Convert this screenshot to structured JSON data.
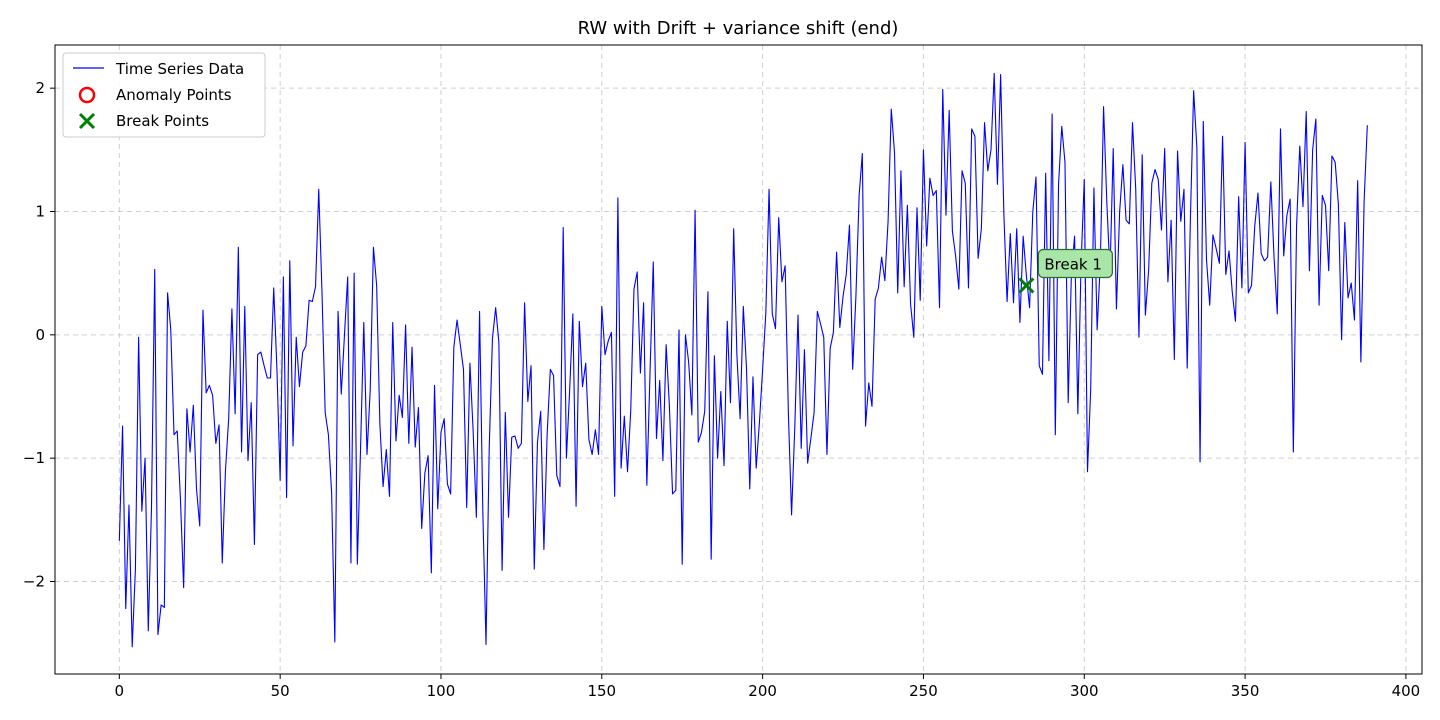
{
  "chart_data": {
    "type": "line",
    "title": "RW with Drift + variance shift (end)",
    "xlabel": "",
    "ylabel": "",
    "xlim": [
      -20,
      405
    ],
    "ylim": [
      -2.75,
      2.35
    ],
    "x_ticks": [
      0,
      50,
      100,
      150,
      200,
      250,
      300,
      350,
      400
    ],
    "y_ticks": [
      -2,
      -1,
      0,
      1,
      2
    ],
    "x_tick_labels": [
      "0",
      "50",
      "100",
      "150",
      "200",
      "250",
      "300",
      "350",
      "400"
    ],
    "y_tick_labels": [
      "−2",
      "−1",
      "0",
      "1",
      "2"
    ],
    "grid": true,
    "legend_position": "top-left",
    "legend": [
      {
        "label": "Time Series Data",
        "marker": "line",
        "color": "#0000ff"
      },
      {
        "label": "Anomaly Points",
        "marker": "circle",
        "color": "#ff0000"
      },
      {
        "label": "Break Points",
        "marker": "x",
        "color": "#008000"
      }
    ],
    "series": [
      {
        "name": "Time Series Data",
        "color": "#0000ff",
        "x_start": 0,
        "x_step": 1,
        "values": [
          -1.67,
          -0.74,
          -2.22,
          -1.38,
          -2.53,
          -1.9,
          -0.02,
          -1.43,
          -1.0,
          -2.4,
          -1.4,
          0.53,
          -2.43,
          -2.19,
          -2.21,
          0.34,
          0.04,
          -0.81,
          -0.78,
          -1.33,
          -2.05,
          -0.6,
          -0.95,
          -0.57,
          -1.25,
          -1.55,
          0.2,
          -0.47,
          -0.41,
          -0.49,
          -0.88,
          -0.73,
          -1.85,
          -1.1,
          -0.68,
          0.21,
          -0.64,
          0.71,
          -0.95,
          0.23,
          -1.02,
          -0.55,
          -1.7,
          -0.16,
          -0.14,
          -0.25,
          -0.35,
          -0.35,
          0.38,
          -0.28,
          -1.18,
          0.47,
          -1.32,
          0.6,
          -0.9,
          -0.02,
          -0.42,
          -0.14,
          -0.09,
          0.28,
          0.27,
          0.39,
          1.18,
          0.35,
          -0.63,
          -0.81,
          -1.28,
          -2.49,
          0.19,
          -0.48,
          0.0,
          0.47,
          -1.85,
          0.5,
          -1.86,
          -0.92,
          0.1,
          -0.97,
          -0.45,
          0.71,
          0.4,
          -0.72,
          -1.23,
          -0.93,
          -1.31,
          0.1,
          -0.86,
          -0.49,
          -0.67,
          0.08,
          -0.88,
          -0.1,
          -0.91,
          -0.59,
          -1.57,
          -1.12,
          -0.98,
          -1.93,
          -0.41,
          -1.41,
          -0.79,
          -0.68,
          -1.21,
          -1.29,
          -0.1,
          0.12,
          -0.08,
          -0.28,
          -1.4,
          -0.23,
          -0.78,
          -1.48,
          0.19,
          -1.42,
          -2.51,
          -0.92,
          -0.03,
          0.22,
          -0.06,
          -1.91,
          -0.63,
          -1.48,
          -0.83,
          -0.82,
          -0.92,
          -0.88,
          0.26,
          -0.54,
          -0.25,
          -1.9,
          -0.87,
          -0.62,
          -1.74,
          -0.81,
          -0.28,
          -0.33,
          -1.14,
          -1.23,
          0.87,
          -1.0,
          -0.45,
          0.17,
          -1.39,
          0.11,
          -0.42,
          -0.23,
          -0.85,
          -0.97,
          -0.77,
          -0.97,
          0.23,
          -0.16,
          -0.05,
          0.02,
          -1.31,
          1.11,
          -1.08,
          -0.66,
          -1.11,
          -0.61,
          0.37,
          0.51,
          -0.31,
          0.26,
          -1.22,
          -0.3,
          0.59,
          -0.84,
          -0.37,
          -1.02,
          -0.08,
          -0.57,
          -1.29,
          -1.26,
          0.04,
          -1.86,
          0.0,
          -0.22,
          -0.65,
          1.01,
          -0.87,
          -0.79,
          -0.62,
          0.35,
          -1.82,
          -0.17,
          -1.0,
          -0.46,
          -1.06,
          0.11,
          -0.55,
          0.86,
          -0.16,
          -0.68,
          0.23,
          -0.28,
          -1.25,
          -0.34,
          -1.08,
          -0.71,
          -0.28,
          0.18,
          1.18,
          0.17,
          0.05,
          0.95,
          0.43,
          0.56,
          -0.63,
          -1.46,
          -0.75,
          0.16,
          -0.92,
          -0.12,
          -1.04,
          -0.84,
          -0.63,
          0.19,
          0.09,
          -0.02,
          -0.97,
          -0.11,
          0.02,
          0.67,
          0.06,
          0.31,
          0.49,
          0.89,
          -0.28,
          0.31,
          1.13,
          1.47,
          -0.74,
          -0.39,
          -0.58,
          0.29,
          0.38,
          0.63,
          0.44,
          0.92,
          1.83,
          1.48,
          0.34,
          1.33,
          0.39,
          1.05,
          0.25,
          -0.02,
          1.03,
          0.28,
          1.5,
          0.72,
          1.27,
          1.13,
          1.17,
          0.22,
          1.99,
          0.97,
          1.82,
          0.84,
          0.64,
          0.37,
          1.33,
          1.23,
          0.38,
          1.67,
          1.61,
          0.62,
          0.86,
          1.72,
          1.33,
          1.5,
          2.12,
          1.22,
          2.11,
          0.98,
          0.27,
          0.82,
          0.26,
          0.86,
          0.1,
          0.8,
          0.48,
          0.22,
          1.0,
          1.28,
          -0.25,
          -0.32,
          1.31,
          -0.21,
          1.79,
          -0.81,
          1.22,
          1.69,
          1.4,
          -0.55,
          0.5,
          0.8,
          -0.64,
          0.57,
          1.26,
          -1.11,
          -0.44,
          1.19,
          0.04,
          0.59,
          1.85,
          1.08,
          0.5,
          1.51,
          0.21,
          1.0,
          1.38,
          0.93,
          0.9,
          1.72,
          1.18,
          -0.02,
          1.46,
          0.16,
          0.52,
          1.23,
          1.34,
          1.26,
          0.85,
          1.51,
          0.43,
          0.93,
          -0.2,
          1.49,
          0.92,
          1.18,
          -0.27,
          0.94,
          1.98,
          1.52,
          -1.03,
          1.73,
          0.61,
          0.24,
          0.81,
          0.7,
          0.58,
          1.61,
          0.49,
          0.68,
          0.35,
          0.11,
          1.12,
          0.38,
          1.56,
          0.34,
          0.4,
          0.88,
          1.15,
          0.66,
          0.6,
          0.63,
          1.24,
          0.63,
          0.17,
          1.67,
          0.64,
          0.97,
          1.1,
          -0.95,
          0.88,
          1.53,
          1.04,
          1.81,
          0.52,
          1.5,
          1.75,
          0.24,
          1.13,
          1.05,
          0.52,
          1.45,
          1.4,
          1.06,
          -0.04,
          0.91,
          0.3,
          0.42,
          0.12,
          1.25,
          -0.22,
          1.08,
          1.7
        ]
      }
    ],
    "break_points": [
      {
        "x": 282,
        "y": 0.4
      }
    ],
    "anomaly_points": [],
    "annotations": [
      {
        "text": "Break 1",
        "x": 282,
        "y": 0.4,
        "box_color": "#a8e6a8",
        "border_color": "#2e6b2e"
      }
    ]
  }
}
